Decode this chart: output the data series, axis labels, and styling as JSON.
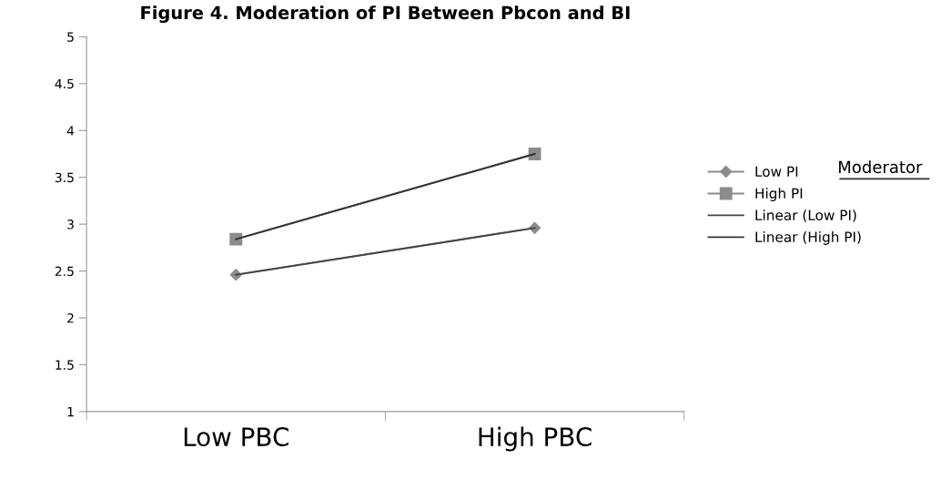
{
  "chart_data": {
    "type": "line",
    "title": "Figure 4. Moderation of PI Between Pbcon and BI",
    "legend_title": "Moderator",
    "legend": "right",
    "categories": [
      "Low PBC",
      "High PBC"
    ],
    "series": [
      {
        "name": "Low PI",
        "color": "#8c8c8c",
        "values": [
          2.46,
          2.96
        ],
        "marker": "diamond"
      },
      {
        "name": "High PI",
        "color": "#8c8c8c",
        "values": [
          2.84,
          3.75
        ],
        "marker": "square"
      },
      {
        "name": "Linear (Low PI)",
        "color": "#444444",
        "values": [
          2.46,
          2.96
        ],
        "marker": "none"
      },
      {
        "name": "Linear (High PI)",
        "color": "#333333",
        "values": [
          2.84,
          3.75
        ],
        "marker": "none"
      }
    ],
    "ylim": [
      1,
      5
    ],
    "yticks": [
      1,
      1.5,
      2,
      2.5,
      3,
      3.5,
      4,
      4.5,
      5
    ],
    "grid": false,
    "line_style": "solid"
  }
}
